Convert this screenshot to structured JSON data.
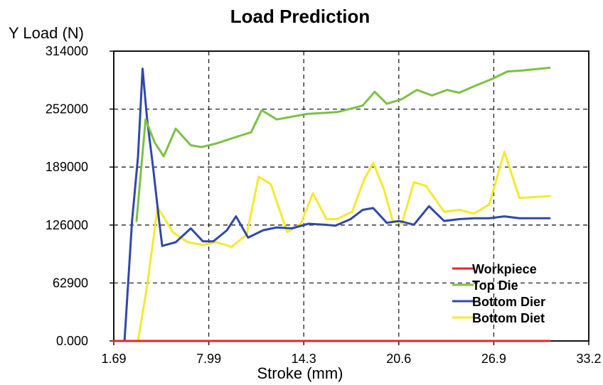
{
  "chart_data": {
    "type": "line",
    "title": "Load Prediction",
    "xlabel": "Stroke (mm)",
    "ylabel": "Y Load (N)",
    "xlim": [
      1.69,
      33.2
    ],
    "ylim": [
      0,
      314000
    ],
    "x_ticks": [
      "1.69",
      "7.99",
      "14.3",
      "20.6",
      "26.9",
      "33.2"
    ],
    "y_ticks": [
      "0.000",
      "62900",
      "126000",
      "189000",
      "252000",
      "314000"
    ],
    "grid": true,
    "legend_position": "bottom-right",
    "series": [
      {
        "name": "Workpiece",
        "color": "#e8232a",
        "points": [
          [
            1.69,
            0
          ],
          [
            30.6,
            0
          ]
        ]
      },
      {
        "name": "Top Die",
        "color": "#7cc142",
        "points": [
          [
            3.2,
            130000
          ],
          [
            3.8,
            240000
          ],
          [
            4.4,
            215000
          ],
          [
            5.0,
            200000
          ],
          [
            5.8,
            230000
          ],
          [
            6.8,
            212000
          ],
          [
            7.5,
            210000
          ],
          [
            8.5,
            214000
          ],
          [
            10.0,
            222000
          ],
          [
            10.8,
            226000
          ],
          [
            11.5,
            250000
          ],
          [
            12.5,
            240000
          ],
          [
            13.5,
            243000
          ],
          [
            14.5,
            246000
          ],
          [
            15.5,
            247000
          ],
          [
            16.5,
            248000
          ],
          [
            17.5,
            252000
          ],
          [
            18.2,
            255000
          ],
          [
            19.0,
            270000
          ],
          [
            19.8,
            257000
          ],
          [
            20.8,
            262000
          ],
          [
            21.8,
            272000
          ],
          [
            22.8,
            266000
          ],
          [
            23.8,
            272000
          ],
          [
            24.6,
            269000
          ],
          [
            25.6,
            276000
          ],
          [
            26.8,
            284000
          ],
          [
            27.8,
            292000
          ],
          [
            28.8,
            293000
          ],
          [
            30.6,
            296000
          ]
        ]
      },
      {
        "name": "Bottom Dier",
        "color": "#3048a8",
        "points": [
          [
            2.4,
            0
          ],
          [
            2.9,
            130000
          ],
          [
            3.3,
            200000
          ],
          [
            3.6,
            295000
          ],
          [
            3.9,
            240000
          ],
          [
            4.3,
            188000
          ],
          [
            4.7,
            130000
          ],
          [
            4.9,
            103000
          ],
          [
            5.8,
            107000
          ],
          [
            6.8,
            122000
          ],
          [
            7.6,
            108000
          ],
          [
            8.3,
            108000
          ],
          [
            9.2,
            120000
          ],
          [
            9.8,
            135000
          ],
          [
            10.6,
            112000
          ],
          [
            11.6,
            120000
          ],
          [
            12.5,
            123000
          ],
          [
            13.5,
            122000
          ],
          [
            14.6,
            127000
          ],
          [
            15.6,
            126000
          ],
          [
            16.4,
            125000
          ],
          [
            17.4,
            132000
          ],
          [
            18.2,
            142000
          ],
          [
            18.9,
            144000
          ],
          [
            19.8,
            128000
          ],
          [
            20.6,
            130000
          ],
          [
            21.6,
            126000
          ],
          [
            22.6,
            146000
          ],
          [
            23.6,
            130000
          ],
          [
            24.6,
            132000
          ],
          [
            25.6,
            133000
          ],
          [
            26.6,
            133000
          ],
          [
            27.6,
            135000
          ],
          [
            28.6,
            133000
          ],
          [
            30.6,
            133000
          ]
        ]
      },
      {
        "name": "Bottom Diet",
        "color": "#f3ea2e",
        "points": [
          [
            3.3,
            0
          ],
          [
            3.9,
            60000
          ],
          [
            4.6,
            145000
          ],
          [
            5.6,
            118000
          ],
          [
            6.6,
            107000
          ],
          [
            7.6,
            104000
          ],
          [
            8.5,
            107000
          ],
          [
            9.5,
            102000
          ],
          [
            10.5,
            115000
          ],
          [
            11.3,
            178000
          ],
          [
            12.1,
            170000
          ],
          [
            13.2,
            118000
          ],
          [
            14.1,
            127000
          ],
          [
            14.9,
            160000
          ],
          [
            15.8,
            132000
          ],
          [
            16.5,
            132000
          ],
          [
            17.5,
            140000
          ],
          [
            18.3,
            175000
          ],
          [
            18.9,
            193000
          ],
          [
            19.6,
            165000
          ],
          [
            20.2,
            130000
          ],
          [
            20.8,
            127000
          ],
          [
            21.6,
            172000
          ],
          [
            22.4,
            168000
          ],
          [
            23.6,
            140000
          ],
          [
            24.6,
            142000
          ],
          [
            25.6,
            138000
          ],
          [
            26.6,
            148000
          ],
          [
            27.6,
            205000
          ],
          [
            28.6,
            155000
          ],
          [
            30.6,
            157000
          ]
        ]
      }
    ]
  }
}
